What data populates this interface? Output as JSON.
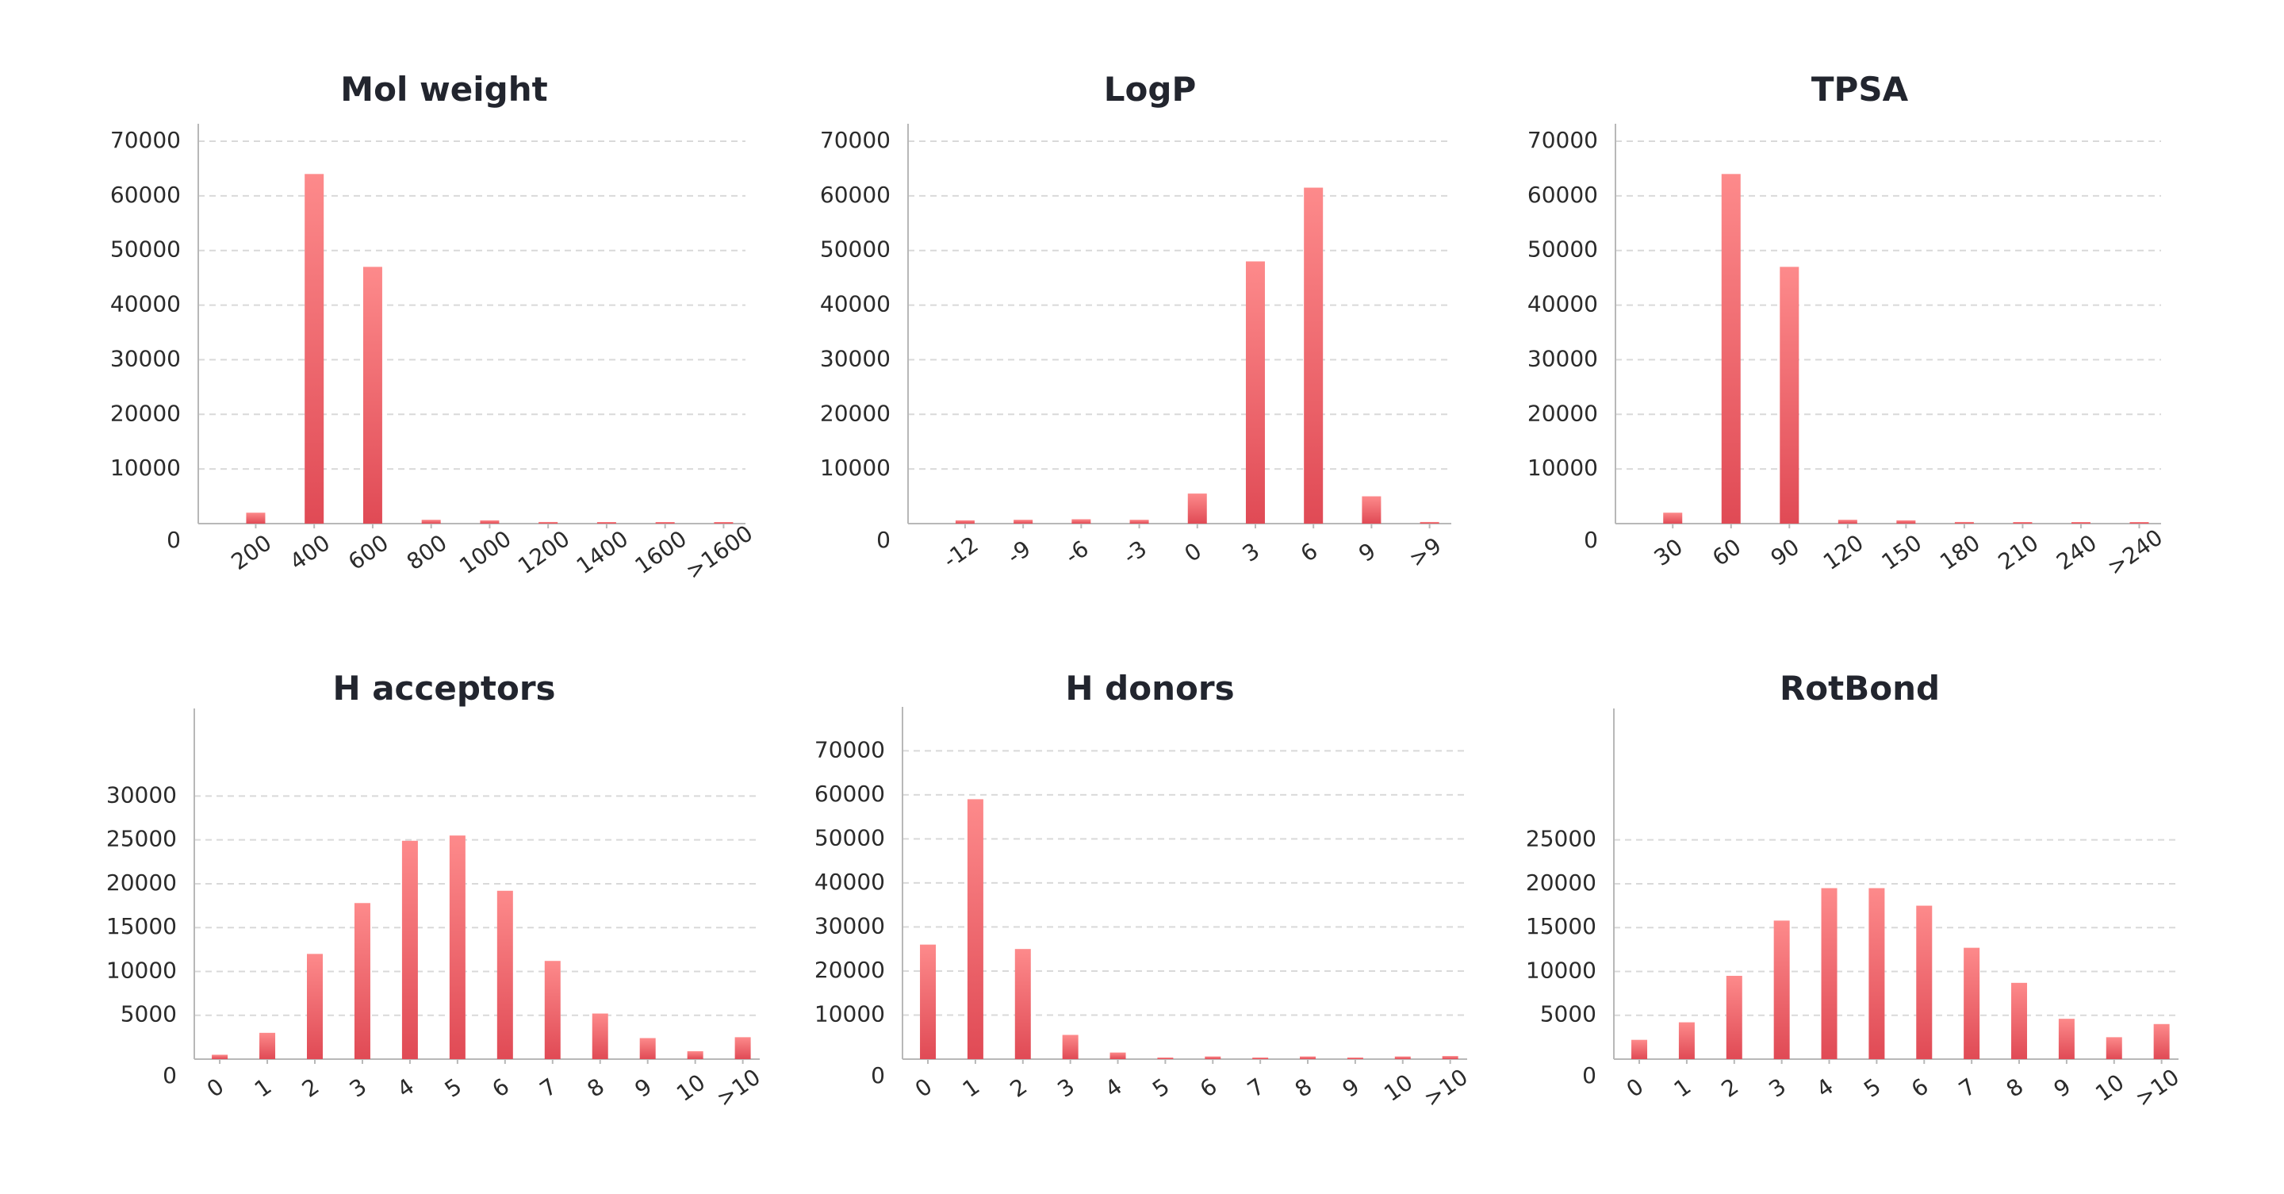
{
  "colors": {
    "bar_top": "#fd8a8b",
    "bar_bottom": "#e04a55",
    "grid": "#d9d9d9",
    "axis": "#b8b8b8",
    "text": "#2b2b2b",
    "title": "#22252e"
  },
  "chart_data": [
    {
      "type": "bar",
      "title": "Mol weight",
      "categories": [
        "200",
        "400",
        "600",
        "800",
        "1000",
        "1200",
        "1400",
        "1600",
        ">1600"
      ],
      "values": [
        2000,
        64000,
        47000,
        700,
        600,
        300,
        200,
        150,
        100
      ],
      "yticks": [
        0,
        10000,
        20000,
        30000,
        40000,
        50000,
        60000,
        70000
      ],
      "ylim": [
        0,
        70000
      ],
      "grid": true,
      "xlabel": "",
      "ylabel": ""
    },
    {
      "type": "bar",
      "title": "LogP",
      "categories": [
        "-12",
        "-9",
        "-6",
        "-3",
        "0",
        "3",
        "6",
        "9",
        ">9"
      ],
      "values": [
        600,
        700,
        800,
        700,
        5500,
        48000,
        61500,
        5000,
        300
      ],
      "yticks": [
        0,
        10000,
        20000,
        30000,
        40000,
        50000,
        60000,
        70000
      ],
      "ylim": [
        0,
        70000
      ],
      "grid": true,
      "xlabel": "",
      "ylabel": ""
    },
    {
      "type": "bar",
      "title": "TPSA",
      "categories": [
        "30",
        "60",
        "90",
        "120",
        "150",
        "180",
        "210",
        "240",
        ">240"
      ],
      "values": [
        2000,
        64000,
        47000,
        700,
        600,
        300,
        200,
        150,
        100
      ],
      "yticks": [
        0,
        10000,
        20000,
        30000,
        40000,
        50000,
        60000,
        70000
      ],
      "ylim": [
        0,
        70000
      ],
      "grid": true,
      "xlabel": "",
      "ylabel": ""
    },
    {
      "type": "bar",
      "title": "H acceptors",
      "categories": [
        "0",
        "1",
        "2",
        "3",
        "4",
        "5",
        "6",
        "7",
        "8",
        "9",
        "10",
        ">10"
      ],
      "values": [
        500,
        3000,
        12000,
        17800,
        24900,
        25500,
        19200,
        11200,
        5200,
        2400,
        900,
        2500
      ],
      "yticks": [
        0,
        5000,
        10000,
        15000,
        20000,
        25000,
        30000
      ],
      "ylim": [
        0,
        38000
      ],
      "grid": true,
      "xlabel": "",
      "ylabel": ""
    },
    {
      "type": "bar",
      "title": "H donors",
      "categories": [
        "0",
        "1",
        "2",
        "3",
        "4",
        "5",
        "6",
        "7",
        "8",
        "9",
        "10",
        ">10"
      ],
      "values": [
        26000,
        59000,
        25000,
        5500,
        1500,
        300,
        600,
        300,
        600,
        300,
        600,
        700
      ],
      "yticks": [
        0,
        10000,
        20000,
        30000,
        40000,
        50000,
        60000,
        70000
      ],
      "ylim": [
        0,
        76000
      ],
      "grid": true,
      "xlabel": "",
      "ylabel": ""
    },
    {
      "type": "bar",
      "title": "RotBond",
      "categories": [
        "0",
        "1",
        "2",
        "3",
        "4",
        "5",
        "6",
        "7",
        "8",
        "9",
        "10",
        ">10"
      ],
      "values": [
        2200,
        4200,
        9500,
        15800,
        19500,
        19500,
        17500,
        12700,
        8700,
        4600,
        2500,
        4000
      ],
      "yticks": [
        0,
        5000,
        10000,
        15000,
        20000,
        25000
      ],
      "ylim": [
        0,
        38000
      ],
      "grid": true,
      "xlabel": "",
      "ylabel": ""
    }
  ]
}
